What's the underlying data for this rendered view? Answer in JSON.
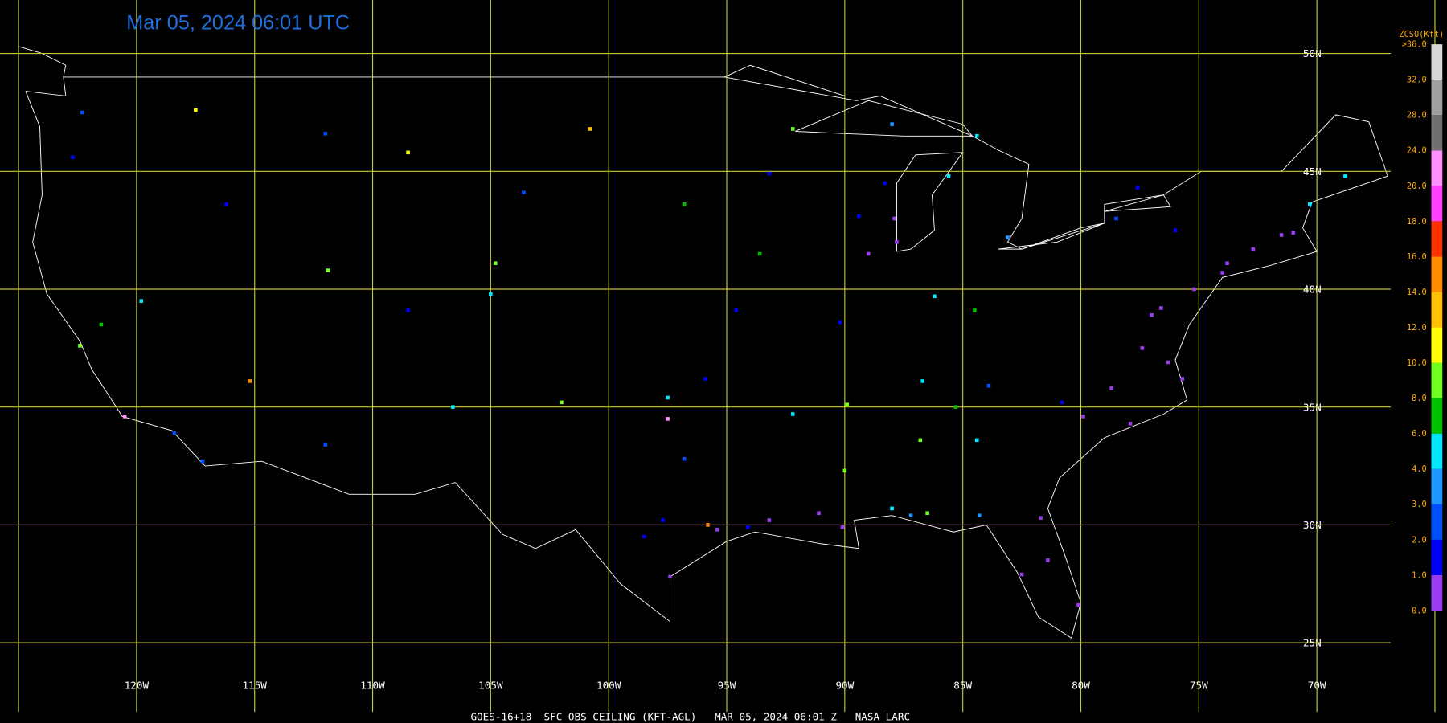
{
  "title": "Mar 05, 2024 06:01 UTC",
  "footer": "GOES-16+18  SFC OBS CEILING (KFT-AGL)   MAR 05, 2024 06:01 Z   NASA LARC",
  "latitude_labels": [
    "50N",
    "45N",
    "40N",
    "35N",
    "30N",
    "25N"
  ],
  "longitude_labels": [
    "120W",
    "115W",
    "110W",
    "105W",
    "100W",
    "95W",
    "90W",
    "85W",
    "80W",
    "75W",
    "70W"
  ],
  "legend": {
    "title": "ZCSO(Kft)",
    "labels": [
      "0.0",
      "1.0",
      "2.0",
      "3.0",
      "4.0",
      "6.0",
      "8.0",
      "10.0",
      "12.0",
      "14.0",
      "16.0",
      "18.0",
      "20.0",
      "24.0",
      "28.0",
      "32.0",
      ">36.0"
    ],
    "colors": [
      "#9a3cf0",
      "#0000ff",
      "#0050ff",
      "#1e96ff",
      "#00e8ff",
      "#00c000",
      "#70ff20",
      "#ffff00",
      "#ffc000",
      "#ff8c00",
      "#ff3000",
      "#ff40ff",
      "#ff90ff",
      "#707070",
      "#a0a0a0",
      "#d8d8d8"
    ]
  },
  "stations": [
    {
      "lon": -74,
      "lat": 40.7,
      "ceiling": 0.5
    },
    {
      "lon": -73.8,
      "lat": 41.1,
      "ceiling": 0.6
    },
    {
      "lon": -72.7,
      "lat": 41.7,
      "ceiling": 0.8
    },
    {
      "lon": -71.5,
      "lat": 42.3,
      "ceiling": 0.7
    },
    {
      "lon": -71,
      "lat": 42.4,
      "ceiling": 0.5
    },
    {
      "lon": -75.2,
      "lat": 40,
      "ceiling": 0.6
    },
    {
      "lon": -76.6,
      "lat": 39.2,
      "ceiling": 0.8
    },
    {
      "lon": -77,
      "lat": 38.9,
      "ceiling": 0.9
    },
    {
      "lon": -77.4,
      "lat": 37.5,
      "ceiling": 0.7
    },
    {
      "lon": -76.3,
      "lat": 36.9,
      "ceiling": 0.6
    },
    {
      "lon": -78.7,
      "lat": 35.8,
      "ceiling": 0.9
    },
    {
      "lon": -80.8,
      "lat": 35.2,
      "ceiling": 1.5
    },
    {
      "lon": -79.9,
      "lat": 34.6,
      "ceiling": 0.5
    },
    {
      "lon": -77.9,
      "lat": 34.3,
      "ceiling": 0.8
    },
    {
      "lon": -75.7,
      "lat": 36.2,
      "ceiling": 0.6
    },
    {
      "lon": -81.4,
      "lat": 28.5,
      "ceiling": 0.7
    },
    {
      "lon": -82.5,
      "lat": 27.9,
      "ceiling": 0.6
    },
    {
      "lon": -80.1,
      "lat": 26.6,
      "ceiling": 0.8
    },
    {
      "lon": -81.7,
      "lat": 30.3,
      "ceiling": 0.9
    },
    {
      "lon": -84.3,
      "lat": 30.4,
      "ceiling": 3.5
    },
    {
      "lon": -86.5,
      "lat": 30.5,
      "ceiling": 8.5
    },
    {
      "lon": -87.2,
      "lat": 30.4,
      "ceiling": 3.6
    },
    {
      "lon": -88,
      "lat": 30.7,
      "ceiling": 4.2
    },
    {
      "lon": -90.1,
      "lat": 29.9,
      "ceiling": 0.7
    },
    {
      "lon": -91.1,
      "lat": 30.5,
      "ceiling": 0.8
    },
    {
      "lon": -93.2,
      "lat": 30.2,
      "ceiling": 0.6
    },
    {
      "lon": -94.1,
      "lat": 29.9,
      "ceiling": 1.5
    },
    {
      "lon": -95.4,
      "lat": 29.8,
      "ceiling": 0.7
    },
    {
      "lon": -97.4,
      "lat": 27.8,
      "ceiling": 0.6
    },
    {
      "lon": -97.7,
      "lat": 30.2,
      "ceiling": 1.6
    },
    {
      "lon": -96.8,
      "lat": 32.8,
      "ceiling": 2.5
    },
    {
      "lon": -97.5,
      "lat": 35.4,
      "ceiling": 5
    },
    {
      "lon": -95.9,
      "lat": 36.2,
      "ceiling": 1.7
    },
    {
      "lon": -94.6,
      "lat": 39.1,
      "ceiling": 1.5
    },
    {
      "lon": -93.6,
      "lat": 41.5,
      "ceiling": 7
    },
    {
      "lon": -90.2,
      "lat": 38.6,
      "ceiling": 1.8
    },
    {
      "lon": -89.9,
      "lat": 35.1,
      "ceiling": 8.3
    },
    {
      "lon": -86.7,
      "lat": 36.1,
      "ceiling": 4.5
    },
    {
      "lon": -86.8,
      "lat": 33.6,
      "ceiling": 9
    },
    {
      "lon": -84.4,
      "lat": 33.6,
      "ceiling": 4.5
    },
    {
      "lon": -85.3,
      "lat": 35,
      "ceiling": 6.5
    },
    {
      "lon": -83.9,
      "lat": 35.9,
      "ceiling": 2.5
    },
    {
      "lon": -87.9,
      "lat": 43,
      "ceiling": 0.8
    },
    {
      "lon": -88.3,
      "lat": 44.5,
      "ceiling": 1.5
    },
    {
      "lon": -89.4,
      "lat": 43.1,
      "ceiling": 1.2
    },
    {
      "lon": -87.8,
      "lat": 42,
      "ceiling": 0.9
    },
    {
      "lon": -86.2,
      "lat": 39.7,
      "ceiling": 4.5
    },
    {
      "lon": -84.5,
      "lat": 39.1,
      "ceiling": 7.5
    },
    {
      "lon": -83.1,
      "lat": 42.2,
      "ceiling": 3.3
    },
    {
      "lon": -85.6,
      "lat": 44.8,
      "ceiling": 4.3
    },
    {
      "lon": -84.4,
      "lat": 46.5,
      "ceiling": 4.4
    },
    {
      "lon": -92.2,
      "lat": 46.8,
      "ceiling": 8.5
    },
    {
      "lon": -93.2,
      "lat": 44.9,
      "ceiling": 1.8
    },
    {
      "lon": -96.8,
      "lat": 43.6,
      "ceiling": 7.5
    },
    {
      "lon": -100.8,
      "lat": 46.8,
      "ceiling": 13
    },
    {
      "lon": -103.6,
      "lat": 44.1,
      "ceiling": 2.5
    },
    {
      "lon": -104.8,
      "lat": 41.1,
      "ceiling": 9
    },
    {
      "lon": -105,
      "lat": 39.8,
      "ceiling": 4.5
    },
    {
      "lon": -108.5,
      "lat": 39.1,
      "ceiling": 1.8
    },
    {
      "lon": -111.9,
      "lat": 40.8,
      "ceiling": 8
    },
    {
      "lon": -112,
      "lat": 33.4,
      "ceiling": 2.5
    },
    {
      "lon": -115.2,
      "lat": 36.1,
      "ceiling": 15
    },
    {
      "lon": -117.2,
      "lat": 32.7,
      "ceiling": 2.1
    },
    {
      "lon": -118.4,
      "lat": 33.9,
      "ceiling": 2.3
    },
    {
      "lon": -121.5,
      "lat": 38.5,
      "ceiling": 7
    },
    {
      "lon": -122.4,
      "lat": 37.6,
      "ceiling": 8.5
    },
    {
      "lon": -119.8,
      "lat": 39.5,
      "ceiling": 4.5
    },
    {
      "lon": -122.7,
      "lat": 45.6,
      "ceiling": 1.5
    },
    {
      "lon": -122.3,
      "lat": 47.5,
      "ceiling": 2.5
    },
    {
      "lon": -117.5,
      "lat": 47.6,
      "ceiling": 11
    },
    {
      "lon": -116.2,
      "lat": 43.6,
      "ceiling": 1.5
    },
    {
      "lon": -112,
      "lat": 46.6,
      "ceiling": 2.5
    },
    {
      "lon": -108.5,
      "lat": 45.8,
      "ceiling": 10
    },
    {
      "lon": -106.6,
      "lat": 35,
      "ceiling": 5.5
    },
    {
      "lon": -102,
      "lat": 35.2,
      "ceiling": 8
    },
    {
      "lon": -98.5,
      "lat": 29.5,
      "ceiling": 1.5
    },
    {
      "lon": -90,
      "lat": 32.3,
      "ceiling": 9.5
    },
    {
      "lon": -92.2,
      "lat": 34.7,
      "ceiling": 4.2
    },
    {
      "lon": -89,
      "lat": 41.5,
      "ceiling": 0.8
    },
    {
      "lon": -76,
      "lat": 42.5,
      "ceiling": 1.2
    },
    {
      "lon": -78.5,
      "lat": 43,
      "ceiling": 2.8
    },
    {
      "lon": -77.6,
      "lat": 44.3,
      "ceiling": 1.9
    },
    {
      "lon": -70.3,
      "lat": 43.6,
      "ceiling": 4.5
    },
    {
      "lon": -68.8,
      "lat": 44.8,
      "ceiling": 5
    },
    {
      "lon": -88,
      "lat": 47,
      "ceiling": 3.3
    },
    {
      "lon": -95.8,
      "lat": 30,
      "ceiling": 15
    },
    {
      "lon": -97.5,
      "lat": 34.5,
      "ceiling": 22
    },
    {
      "lon": -120.5,
      "lat": 34.6,
      "ceiling": 22
    }
  ]
}
